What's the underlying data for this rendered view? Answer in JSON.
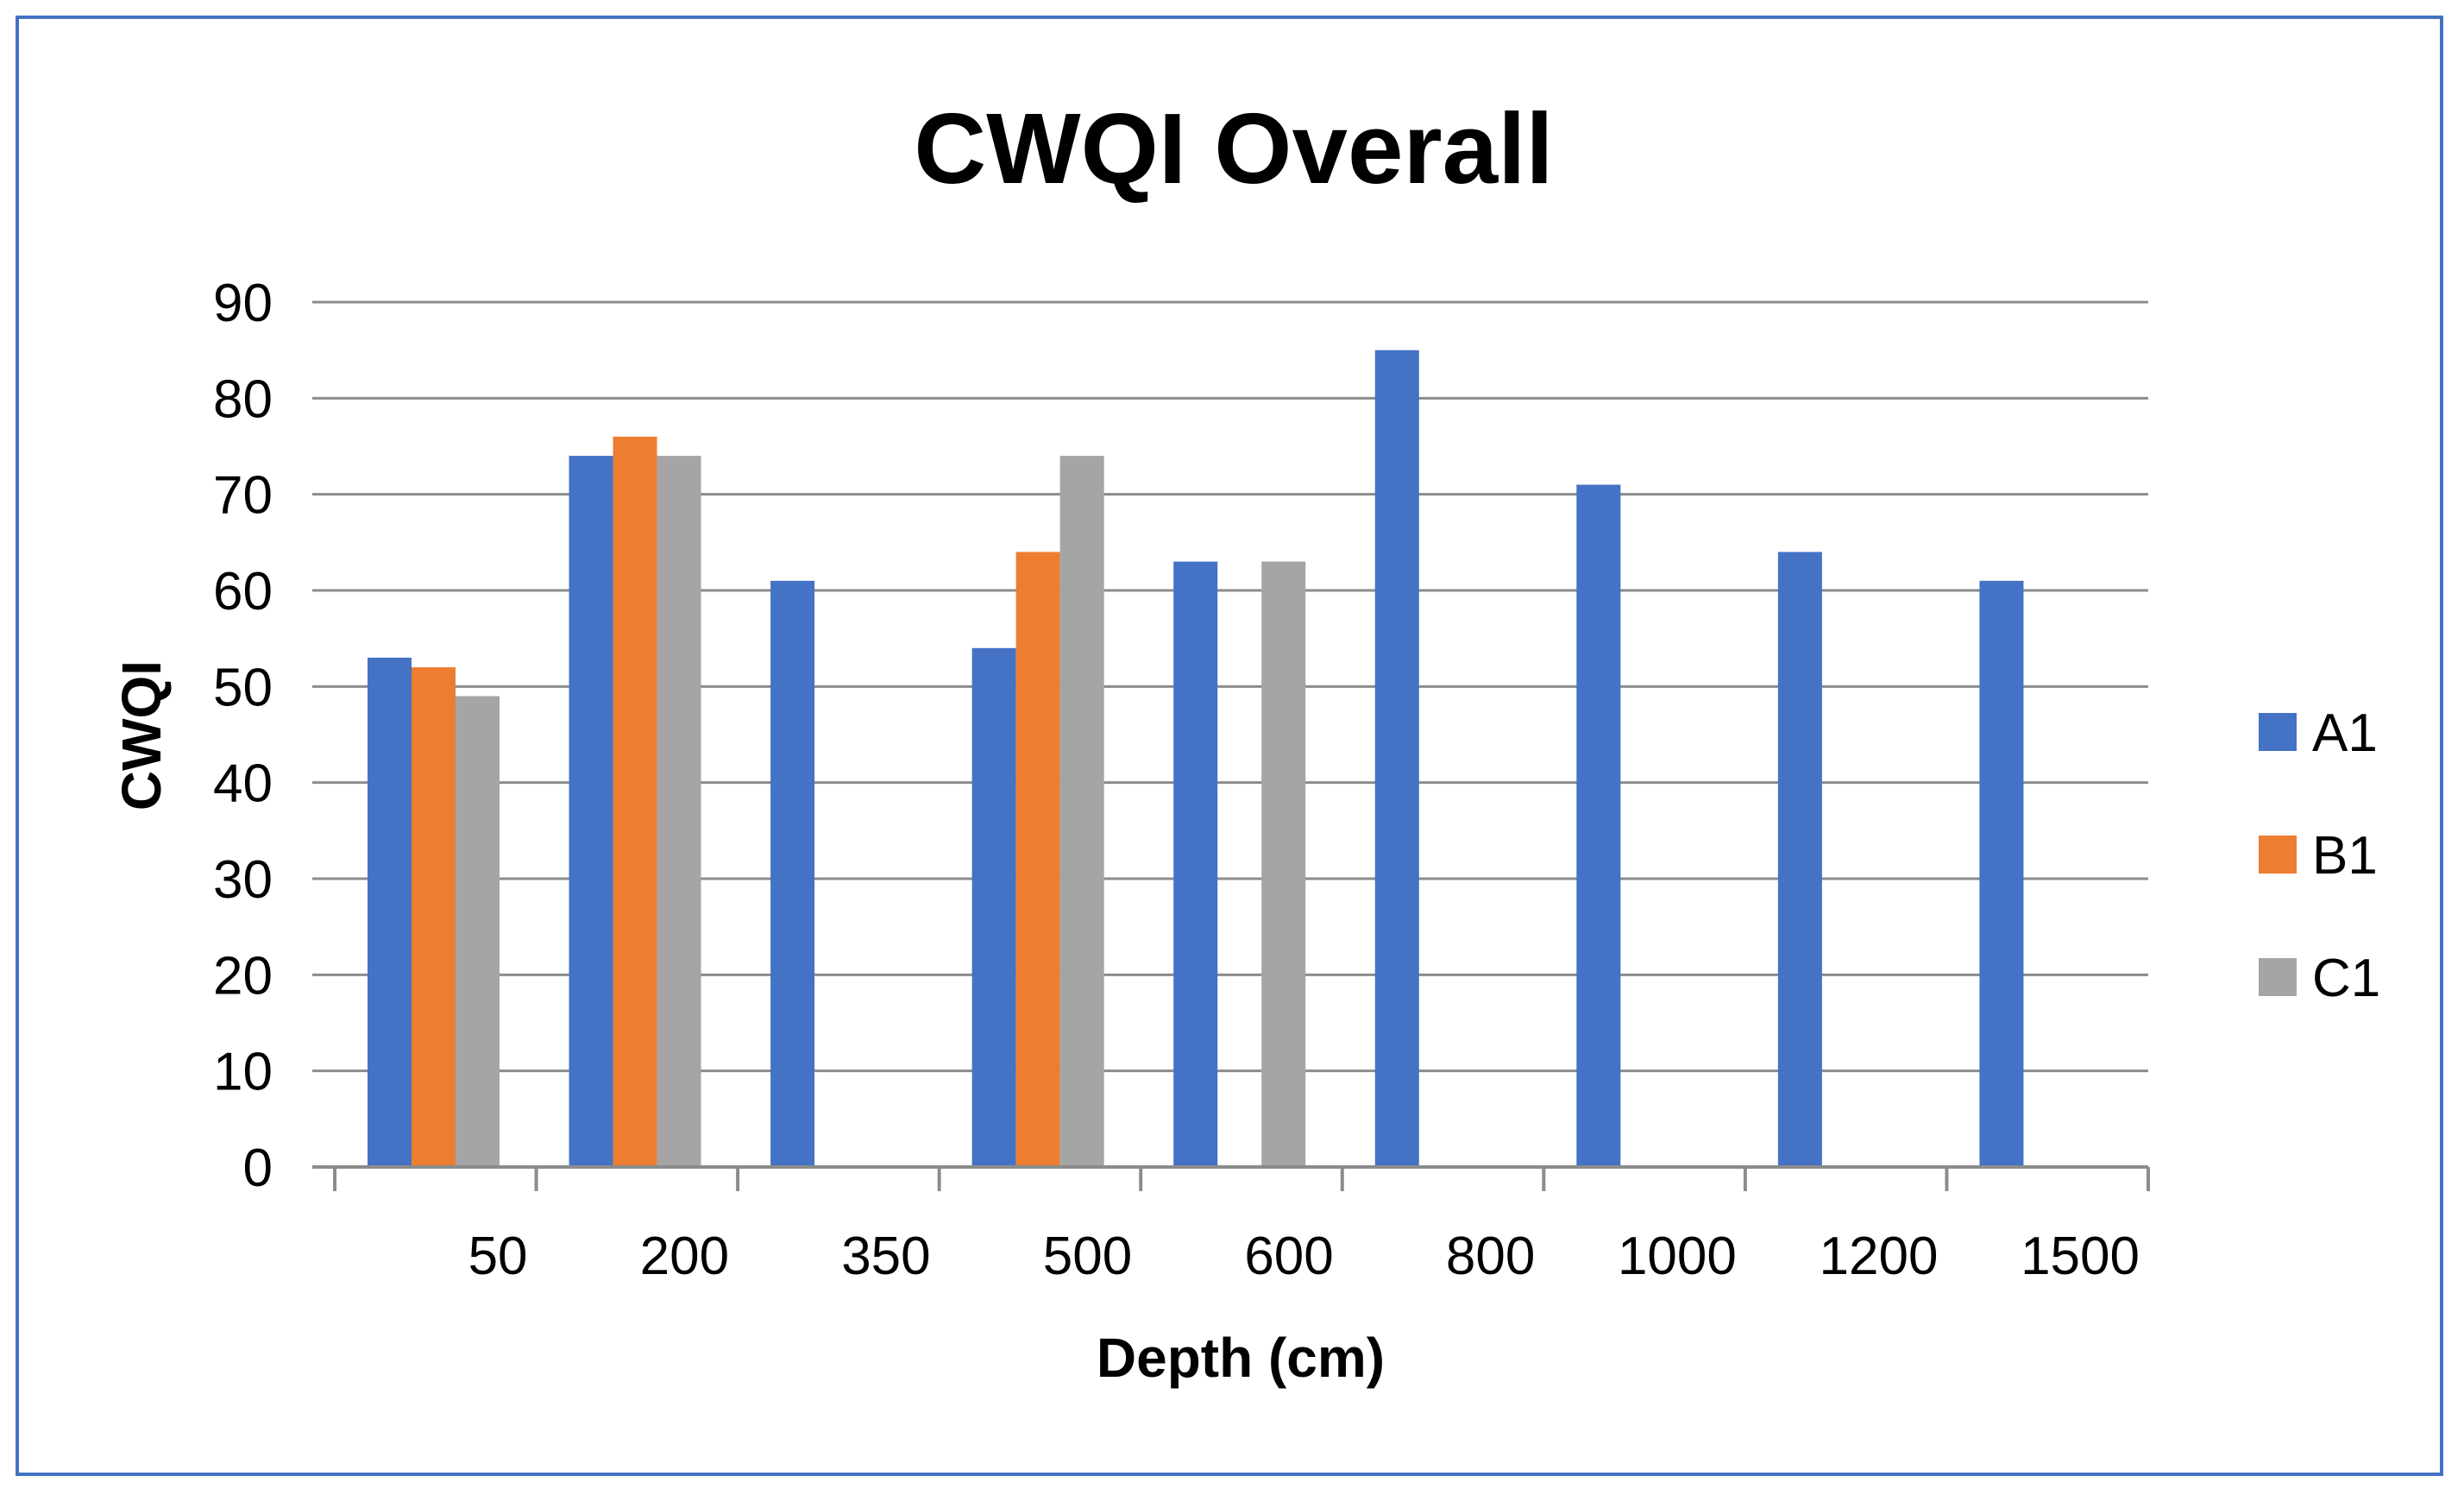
{
  "chart_data": {
    "type": "bar",
    "title": "CWQI Overall",
    "xlabel": "Depth (cm)",
    "ylabel": "CWQI",
    "categories": [
      "50",
      "200",
      "350",
      "500",
      "600",
      "800",
      "1000",
      "1200",
      "1500"
    ],
    "series": [
      {
        "name": "A1",
        "color": "#4472c4",
        "values": [
          53,
          74,
          61,
          54,
          63,
          85,
          71,
          64,
          61
        ]
      },
      {
        "name": "B1",
        "color": "#ed7d31",
        "values": [
          52,
          76,
          null,
          64,
          null,
          null,
          null,
          null,
          null
        ]
      },
      {
        "name": "C1",
        "color": "#a5a5a5",
        "values": [
          49,
          74,
          null,
          74,
          63,
          null,
          null,
          null,
          null
        ]
      }
    ],
    "ylim": [
      0,
      90
    ],
    "yticks": [
      0,
      10,
      20,
      30,
      40,
      50,
      60,
      70,
      80,
      90
    ],
    "grid": true,
    "legend_position": "right"
  }
}
